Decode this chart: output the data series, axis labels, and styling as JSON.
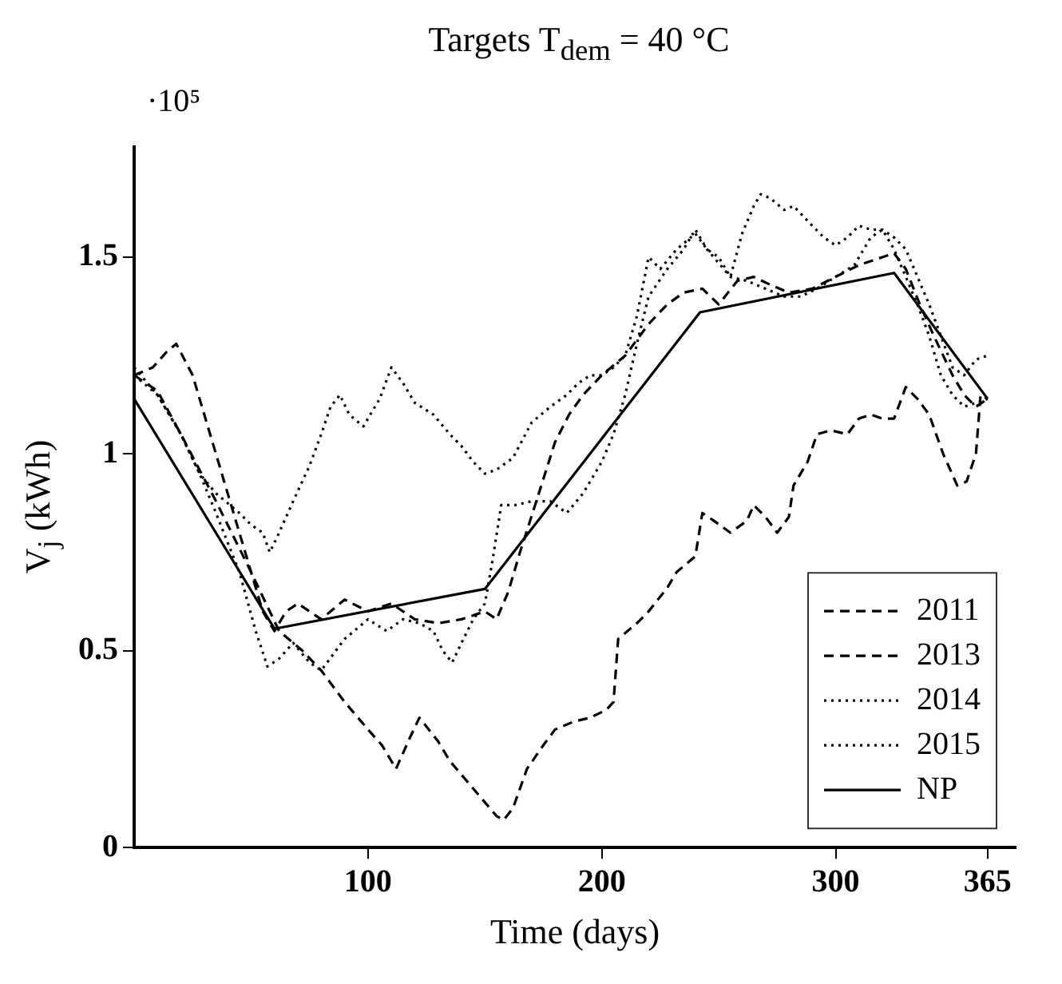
{
  "chart_data": {
    "type": "line",
    "title": "Targets T$_{dem}$ = 40 °C",
    "xlabel": "Time (days)",
    "ylabel": "V$_{j}$ (kWh)",
    "annotations": [
      "·10⁵"
    ],
    "xlim": [
      0,
      377
    ],
    "xticks": [
      100,
      200,
      300,
      365
    ],
    "ylim": [
      0,
      1.78
    ],
    "yticks": [
      0,
      0.5,
      1,
      1.5
    ],
    "grid": false,
    "legend": "bottom right",
    "marker": "none",
    "series": [
      {
        "name": "2011",
        "color": "#000000",
        "line_style": "dashed",
        "x": [
          0,
          10,
          20,
          35,
          50,
          62,
          72,
          80,
          90,
          100,
          106,
          112,
          118,
          122,
          130,
          135,
          145,
          155,
          158,
          162,
          168,
          175,
          180,
          188,
          195,
          202,
          205,
          207,
          215,
          220,
          228,
          232,
          238,
          240,
          243,
          248,
          255,
          262,
          265,
          270,
          275,
          280,
          282,
          288,
          292,
          298,
          305,
          310,
          315,
          320,
          325,
          330,
          335,
          340,
          346,
          352,
          356,
          360,
          362,
          365
        ],
        "values": [
          1.2,
          1.16,
          1.05,
          0.88,
          0.7,
          0.55,
          0.5,
          0.45,
          0.37,
          0.3,
          0.26,
          0.2,
          0.28,
          0.33,
          0.27,
          0.22,
          0.15,
          0.08,
          0.07,
          0.1,
          0.2,
          0.26,
          0.3,
          0.32,
          0.33,
          0.35,
          0.37,
          0.53,
          0.57,
          0.6,
          0.66,
          0.7,
          0.73,
          0.74,
          0.85,
          0.83,
          0.8,
          0.83,
          0.87,
          0.84,
          0.8,
          0.84,
          0.92,
          0.98,
          1.05,
          1.06,
          1.05,
          1.09,
          1.1,
          1.09,
          1.09,
          1.17,
          1.14,
          1.1,
          1.0,
          0.92,
          0.93,
          1.0,
          1.15,
          1.14
        ]
      },
      {
        "name": "2013",
        "color": "#000000",
        "line_style": "dashed",
        "x": [
          0,
          8,
          14,
          18,
          25,
          35,
          45,
          55,
          60,
          65,
          70,
          80,
          90,
          100,
          110,
          120,
          130,
          140,
          150,
          155,
          160,
          165,
          172,
          180,
          186,
          192,
          200,
          210,
          220,
          228,
          235,
          243,
          250,
          258,
          265,
          272,
          280,
          290,
          300,
          310,
          320,
          325,
          330,
          336,
          342,
          350,
          355,
          360,
          365
        ],
        "values": [
          1.2,
          1.22,
          1.26,
          1.28,
          1.2,
          1.0,
          0.8,
          0.6,
          0.55,
          0.6,
          0.62,
          0.58,
          0.63,
          0.6,
          0.62,
          0.58,
          0.57,
          0.58,
          0.6,
          0.58,
          0.65,
          0.75,
          0.88,
          1.03,
          1.1,
          1.15,
          1.2,
          1.25,
          1.33,
          1.38,
          1.41,
          1.42,
          1.38,
          1.44,
          1.45,
          1.43,
          1.41,
          1.42,
          1.45,
          1.48,
          1.5,
          1.51,
          1.47,
          1.38,
          1.3,
          1.2,
          1.15,
          1.12,
          1.14
        ]
      },
      {
        "name": "2014",
        "color": "#000000",
        "line_style": "dotted",
        "x": [
          0,
          10,
          20,
          28,
          35,
          45,
          52,
          57,
          62,
          68,
          75,
          80,
          85,
          90,
          100,
          108,
          115,
          122,
          128,
          132,
          136,
          140,
          145,
          150,
          153,
          157,
          163,
          170,
          178,
          185,
          192,
          200,
          205,
          210,
          215,
          220,
          228,
          235,
          240,
          245,
          255,
          262,
          270,
          278,
          285,
          292,
          300,
          308,
          315,
          320,
          325,
          330,
          335,
          340,
          345,
          350,
          355,
          360,
          365
        ],
        "values": [
          1.2,
          1.15,
          1.05,
          0.95,
          0.85,
          0.7,
          0.55,
          0.46,
          0.48,
          0.52,
          0.47,
          0.45,
          0.49,
          0.53,
          0.58,
          0.55,
          0.58,
          0.57,
          0.55,
          0.5,
          0.47,
          0.52,
          0.58,
          0.62,
          0.72,
          0.87,
          0.87,
          0.88,
          0.88,
          0.85,
          0.9,
          0.98,
          1.05,
          1.15,
          1.28,
          1.4,
          1.47,
          1.52,
          1.57,
          1.52,
          1.45,
          1.44,
          1.42,
          1.4,
          1.4,
          1.42,
          1.45,
          1.48,
          1.55,
          1.57,
          1.52,
          1.45,
          1.38,
          1.3,
          1.2,
          1.15,
          1.12,
          1.13,
          1.14
        ]
      },
      {
        "name": "2015",
        "color": "#000000",
        "line_style": "dotted",
        "x": [
          0,
          10,
          20,
          28,
          35,
          45,
          50,
          55,
          58,
          62,
          68,
          75,
          80,
          84,
          88,
          92,
          98,
          105,
          110,
          115,
          120,
          128,
          135,
          140,
          145,
          150,
          155,
          162,
          170,
          178,
          185,
          190,
          195,
          200,
          205,
          210,
          215,
          220,
          225,
          232,
          240,
          245,
          250,
          255,
          260,
          265,
          268,
          272,
          278,
          282,
          290,
          295,
          300,
          305,
          310,
          315,
          320,
          325,
          330,
          335,
          340,
          345,
          350,
          355,
          360,
          365
        ],
        "values": [
          1.22,
          1.15,
          1.05,
          0.95,
          0.9,
          0.85,
          0.82,
          0.8,
          0.75,
          0.8,
          0.88,
          0.97,
          1.05,
          1.12,
          1.15,
          1.1,
          1.07,
          1.14,
          1.22,
          1.18,
          1.13,
          1.1,
          1.05,
          1.02,
          0.98,
          0.95,
          0.96,
          0.99,
          1.08,
          1.12,
          1.15,
          1.18,
          1.2,
          1.2,
          1.22,
          1.25,
          1.35,
          1.5,
          1.47,
          1.52,
          1.56,
          1.52,
          1.5,
          1.45,
          1.56,
          1.63,
          1.66,
          1.65,
          1.62,
          1.63,
          1.58,
          1.55,
          1.53,
          1.55,
          1.58,
          1.57,
          1.57,
          1.55,
          1.52,
          1.45,
          1.38,
          1.3,
          1.22,
          1.2,
          1.24,
          1.25
        ]
      },
      {
        "name": "NP",
        "color": "#000000",
        "line_style": "solid",
        "x": [
          0,
          60,
          150,
          242,
          325,
          365
        ],
        "values": [
          1.14,
          0.556,
          0.657,
          1.36,
          1.46,
          1.14
        ]
      }
    ]
  }
}
